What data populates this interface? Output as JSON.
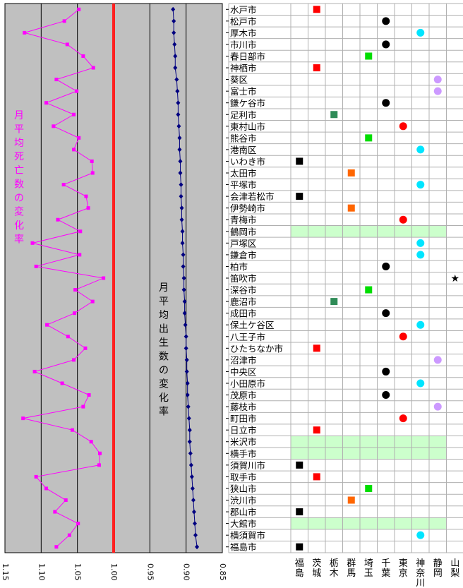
{
  "chart_data": {
    "type": "line",
    "x_axis": {
      "ticks": [
        "1.15",
        "1.10",
        "1.05",
        "1.00",
        "0.95",
        "0.90",
        "0.85"
      ],
      "min": 0.85,
      "max": 1.15,
      "reversed": true
    },
    "reference_line": 1.0,
    "left_label": "月平均死亡数の変化率",
    "right_label": "月平均出生数の変化率",
    "colors": {
      "death_series": "#ff00ff",
      "birth_series": "#000080",
      "reference_line": "#ff2020",
      "plot_background": "#c0c0c0",
      "band": "#ccffcc"
    },
    "series": [
      {
        "name": "月平均死亡数の変化率",
        "values": [
          1.048,
          1.068,
          1.123,
          1.064,
          1.042,
          1.028,
          1.079,
          1.051,
          1.093,
          1.055,
          1.083,
          1.048,
          1.055,
          1.03,
          1.029,
          1.069,
          1.038,
          1.035,
          1.077,
          1.046,
          1.112,
          1.047,
          1.107,
          1.014,
          1.053,
          1.029,
          1.054,
          1.092,
          1.063,
          1.039,
          1.055,
          1.109,
          1.071,
          1.034,
          1.042,
          1.125,
          1.057,
          1.031,
          1.019,
          1.02,
          1.107,
          1.093,
          1.066,
          1.081,
          1.049,
          1.061,
          1.079
        ]
      },
      {
        "name": "月平均出生数の変化率",
        "values": [
          0.918,
          0.917,
          0.917,
          0.916,
          0.915,
          0.915,
          0.913,
          0.912,
          0.911,
          0.911,
          0.91,
          0.909,
          0.909,
          0.908,
          0.908,
          0.907,
          0.907,
          0.906,
          0.906,
          0.905,
          0.905,
          0.904,
          0.904,
          0.903,
          0.903,
          0.902,
          0.902,
          0.901,
          0.9,
          0.9,
          0.899,
          0.899,
          0.898,
          0.898,
          0.897,
          0.896,
          0.895,
          0.895,
          0.894,
          0.893,
          0.892,
          0.891,
          0.89,
          0.889,
          0.888,
          0.887,
          0.885
        ]
      }
    ],
    "prefectures": [
      "福島",
      "茨城",
      "栃木",
      "群馬",
      "埼玉",
      "千葉",
      "東京",
      "神奈川",
      "静岡",
      "山梨"
    ],
    "prefecture_markers": {
      "福島": {
        "shape": "square",
        "color": "#000000"
      },
      "茨城": {
        "shape": "square",
        "color": "#ff0000"
      },
      "栃木": {
        "shape": "square",
        "color": "#2e8b57"
      },
      "群馬": {
        "shape": "square",
        "color": "#ff6600"
      },
      "埼玉": {
        "shape": "square",
        "color": "#00dd00"
      },
      "千葉": {
        "shape": "circle",
        "color": "#000000"
      },
      "東京": {
        "shape": "circle",
        "color": "#ff0000"
      },
      "神奈川": {
        "shape": "circle",
        "color": "#00e5ff"
      },
      "静岡": {
        "shape": "circle",
        "color": "#cc99ff"
      },
      "山梨": {
        "shape": "star",
        "color": "#000000"
      }
    },
    "rows": [
      {
        "city": "水戸市",
        "pref": "茨城"
      },
      {
        "city": "松戸市",
        "pref": "千葉"
      },
      {
        "city": "厚木市",
        "pref": "神奈川"
      },
      {
        "city": "市川市",
        "pref": "千葉"
      },
      {
        "city": "春日部市",
        "pref": "埼玉"
      },
      {
        "city": "神栖市",
        "pref": "茨城"
      },
      {
        "city": "葵区",
        "pref": "静岡"
      },
      {
        "city": "富士市",
        "pref": "静岡"
      },
      {
        "city": "鎌ケ谷市",
        "pref": "千葉"
      },
      {
        "city": "足利市",
        "pref": "栃木"
      },
      {
        "city": "東村山市",
        "pref": "東京"
      },
      {
        "city": "熊谷市",
        "pref": "埼玉"
      },
      {
        "city": "港南区",
        "pref": "神奈川"
      },
      {
        "city": "いわき市",
        "pref": "福島"
      },
      {
        "city": "太田市",
        "pref": "群馬"
      },
      {
        "city": "平塚市",
        "pref": "神奈川"
      },
      {
        "city": "会津若松市",
        "pref": "福島"
      },
      {
        "city": "伊勢崎市",
        "pref": "群馬"
      },
      {
        "city": "青梅市",
        "pref": "東京"
      },
      {
        "city": "鶴岡市",
        "pref": "",
        "band": true
      },
      {
        "city": "戸塚区",
        "pref": "神奈川"
      },
      {
        "city": "鎌倉市",
        "pref": "神奈川"
      },
      {
        "city": "柏市",
        "pref": "千葉"
      },
      {
        "city": "笛吹市",
        "pref": "山梨"
      },
      {
        "city": "深谷市",
        "pref": "埼玉"
      },
      {
        "city": "鹿沼市",
        "pref": "栃木"
      },
      {
        "city": "成田市",
        "pref": "千葉"
      },
      {
        "city": "保土ケ谷区",
        "pref": "神奈川"
      },
      {
        "city": "八王子市",
        "pref": "東京"
      },
      {
        "city": "ひたちなか市",
        "pref": "茨城"
      },
      {
        "city": "沼津市",
        "pref": "静岡"
      },
      {
        "city": "中央区",
        "pref": "千葉"
      },
      {
        "city": "小田原市",
        "pref": "神奈川"
      },
      {
        "city": "茂原市",
        "pref": "千葉"
      },
      {
        "city": "藤枝市",
        "pref": "静岡"
      },
      {
        "city": "町田市",
        "pref": "東京"
      },
      {
        "city": "日立市",
        "pref": "茨城"
      },
      {
        "city": "米沢市",
        "pref": "",
        "band": true
      },
      {
        "city": "横手市",
        "pref": "",
        "band": true
      },
      {
        "city": "須賀川市",
        "pref": "福島"
      },
      {
        "city": "取手市",
        "pref": "茨城"
      },
      {
        "city": "狭山市",
        "pref": "埼玉"
      },
      {
        "city": "渋川市",
        "pref": "群馬"
      },
      {
        "city": "郡山市",
        "pref": "福島"
      },
      {
        "city": "大館市",
        "pref": "",
        "band": true
      },
      {
        "city": "横須賀市",
        "pref": "神奈川"
      },
      {
        "city": "福島市",
        "pref": "福島"
      }
    ]
  }
}
